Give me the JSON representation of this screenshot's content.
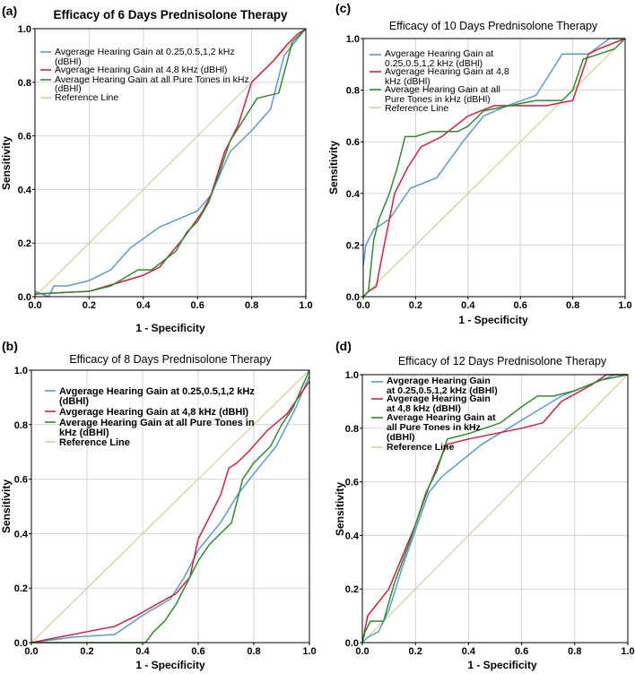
{
  "figure": {
    "colors": {
      "low": "#5b9bd5",
      "high": "#d0213d",
      "all": "#2e8b2e",
      "ref": "#d8d0a0",
      "grid": "#d6d6d6",
      "axis": "#000000"
    }
  },
  "chart_data": [
    {
      "id": "a",
      "type": "line",
      "panel_label": "(a)",
      "title": "Efficacy of 6 Days Prednisolone Therapy",
      "xlabel": "1 - Specificity",
      "ylabel": "Sensitivity",
      "xlim": [
        0,
        1
      ],
      "ylim": [
        0,
        1
      ],
      "ticks": [
        "0.0",
        "0.2",
        "0.4",
        "0.6",
        "0.8",
        "1.0"
      ],
      "series": [
        {
          "key": "low",
          "name": "Avgerage Hearing Gain at 0.25,0.5,1,2 kHz (dBHl)",
          "x": [
            0,
            0.05,
            0.07,
            0.12,
            0.2,
            0.28,
            0.35,
            0.46,
            0.6,
            0.65,
            0.72,
            0.8,
            0.87,
            0.92,
            1.0
          ],
          "y": [
            0.02,
            0.0,
            0.04,
            0.04,
            0.06,
            0.1,
            0.18,
            0.26,
            0.32,
            0.38,
            0.54,
            0.62,
            0.7,
            0.9,
            1.0
          ]
        },
        {
          "key": "high",
          "name": "Avgerage Hearing Gain at 4,8 kHz (dBHl)",
          "x": [
            0,
            0.2,
            0.3,
            0.4,
            0.46,
            0.5,
            0.55,
            0.62,
            0.65,
            0.7,
            0.75,
            0.8,
            0.88,
            0.93,
            0.97,
            1.0
          ],
          "y": [
            0.01,
            0.02,
            0.05,
            0.08,
            0.11,
            0.16,
            0.22,
            0.32,
            0.38,
            0.54,
            0.64,
            0.8,
            0.88,
            0.94,
            0.98,
            1.0
          ]
        },
        {
          "key": "all",
          "name": "Average Hearing Gain at all Pure Tones in kHz (dBHl)",
          "x": [
            0,
            0.2,
            0.28,
            0.33,
            0.38,
            0.43,
            0.47,
            0.52,
            0.56,
            0.6,
            0.64,
            0.68,
            0.72,
            0.77,
            0.82,
            0.9,
            0.95,
            1.0
          ],
          "y": [
            0.01,
            0.02,
            0.04,
            0.07,
            0.1,
            0.1,
            0.13,
            0.17,
            0.24,
            0.28,
            0.35,
            0.46,
            0.58,
            0.66,
            0.74,
            0.76,
            0.95,
            1.0
          ]
        },
        {
          "key": "ref",
          "name": "Reference Line",
          "x": [
            0,
            1
          ],
          "y": [
            0,
            1
          ]
        }
      ]
    },
    {
      "id": "c",
      "type": "line",
      "panel_label": "(c)",
      "title": "Efficacy of 10 Days Prednisolone Therapy",
      "xlabel": "1 - Specificity",
      "ylabel": "Sensitivity",
      "xlim": [
        0,
        1
      ],
      "ylim": [
        0,
        1
      ],
      "ticks": [
        "0.0",
        "0.2",
        "0.4",
        "0.6",
        "0.8",
        "1.0"
      ],
      "series": [
        {
          "key": "low",
          "name": "Avgerage Hearing Gain at 0.25,0.5,1,2 kHz (dBHl)",
          "x": [
            0,
            0.01,
            0.04,
            0.1,
            0.18,
            0.28,
            0.38,
            0.46,
            0.55,
            0.66,
            0.76,
            0.86,
            0.94,
            1.0
          ],
          "y": [
            0.12,
            0.2,
            0.26,
            0.3,
            0.42,
            0.46,
            0.6,
            0.7,
            0.74,
            0.78,
            0.94,
            0.94,
            1.0,
            1.0
          ]
        },
        {
          "key": "high",
          "name": "Avgerage Hearing Gain at 4,8 kHz (dBHl)",
          "x": [
            0,
            0.02,
            0.05,
            0.08,
            0.12,
            0.17,
            0.22,
            0.3,
            0.4,
            0.5,
            0.6,
            0.7,
            0.8,
            0.86,
            0.9,
            1.0
          ],
          "y": [
            0.0,
            0.02,
            0.04,
            0.2,
            0.4,
            0.5,
            0.58,
            0.62,
            0.7,
            0.74,
            0.74,
            0.74,
            0.76,
            0.94,
            0.96,
            1.0
          ]
        },
        {
          "key": "all",
          "name": "Average Hearing Gain at all Pure Tones in kHz (dBHl)",
          "x": [
            0,
            0.02,
            0.04,
            0.06,
            0.1,
            0.13,
            0.16,
            0.2,
            0.26,
            0.3,
            0.36,
            0.4,
            0.46,
            0.56,
            0.66,
            0.76,
            0.8,
            0.84,
            0.9,
            0.96,
            1.0
          ],
          "y": [
            0.0,
            0.02,
            0.22,
            0.3,
            0.4,
            0.5,
            0.62,
            0.62,
            0.64,
            0.64,
            0.64,
            0.66,
            0.72,
            0.74,
            0.76,
            0.76,
            0.8,
            0.92,
            0.94,
            0.96,
            1.0
          ]
        },
        {
          "key": "ref",
          "name": "Reference Line",
          "x": [
            0,
            1
          ],
          "y": [
            0,
            1
          ]
        }
      ]
    },
    {
      "id": "b",
      "type": "line",
      "panel_label": "(b)",
      "title": "Efficacy of 8 Days Prednisolone Therapy",
      "xlabel": "1 - Specificity",
      "ylabel": "Sensitivity",
      "xlim": [
        0,
        1
      ],
      "ylim": [
        0,
        1
      ],
      "ticks": [
        "0.0",
        "0.2",
        "0.4",
        "0.6",
        "0.8",
        "1.0"
      ],
      "series": [
        {
          "key": "low",
          "name": "Avgerage Hearing Gain at 0.25,0.5,1,2 kHz (dBHl)",
          "x": [
            0,
            0.15,
            0.3,
            0.4,
            0.5,
            0.55,
            0.6,
            0.68,
            0.74,
            0.8,
            0.88,
            0.95,
            1.0
          ],
          "y": [
            0.0,
            0.02,
            0.03,
            0.1,
            0.16,
            0.24,
            0.34,
            0.44,
            0.54,
            0.62,
            0.72,
            0.86,
            0.98
          ]
        },
        {
          "key": "high",
          "name": "Avgerage Hearing Gain at 4,8 kHz (dBHl)",
          "x": [
            0,
            0.1,
            0.2,
            0.3,
            0.38,
            0.45,
            0.52,
            0.57,
            0.6,
            0.64,
            0.68,
            0.71,
            0.74,
            0.78,
            0.85,
            0.92,
            1.0
          ],
          "y": [
            0.0,
            0.02,
            0.04,
            0.06,
            0.1,
            0.14,
            0.18,
            0.24,
            0.38,
            0.46,
            0.54,
            0.64,
            0.66,
            0.7,
            0.78,
            0.84,
            0.96
          ]
        },
        {
          "key": "all",
          "name": "Average Hearing Gain at all Pure Tones in kHz (dBHl)",
          "x": [
            0,
            0.41,
            0.44,
            0.48,
            0.52,
            0.56,
            0.6,
            0.64,
            0.68,
            0.72,
            0.76,
            0.8,
            0.86,
            0.9,
            0.94,
            1.0
          ],
          "y": [
            0.0,
            0.0,
            0.04,
            0.08,
            0.14,
            0.22,
            0.3,
            0.36,
            0.4,
            0.44,
            0.6,
            0.66,
            0.72,
            0.8,
            0.86,
            1.0
          ]
        },
        {
          "key": "ref",
          "name": "Reference Line",
          "x": [
            0,
            1
          ],
          "y": [
            0,
            1
          ]
        }
      ]
    },
    {
      "id": "d",
      "type": "line",
      "panel_label": "(d)",
      "title": "Efficacy of 12 Days Prednisolone Therapy",
      "xlabel": "1 - Specificity",
      "ylabel": "Sensitivity",
      "xlim": [
        0,
        1
      ],
      "ylim": [
        0,
        1
      ],
      "ticks": [
        "0.0",
        "0.2",
        "0.4",
        "0.6",
        "0.8",
        "1.0"
      ],
      "series": [
        {
          "key": "low",
          "name": "Avgerage Hearing Gain at 0.25,0.5,1,2 kHz (dBHl)",
          "x": [
            0,
            0.02,
            0.06,
            0.1,
            0.15,
            0.2,
            0.25,
            0.3,
            0.35,
            0.45,
            0.55,
            0.65,
            0.75,
            0.85,
            0.95,
            1.0
          ],
          "y": [
            0.0,
            0.02,
            0.04,
            0.12,
            0.28,
            0.42,
            0.56,
            0.62,
            0.66,
            0.74,
            0.8,
            0.86,
            0.92,
            0.96,
            1.0,
            1.0
          ]
        },
        {
          "key": "high",
          "name": "Avgerage Hearing Gain at 4,8 kHz (dBHl)",
          "x": [
            0,
            0.02,
            0.1,
            0.15,
            0.2,
            0.25,
            0.3,
            0.32,
            0.4,
            0.5,
            0.6,
            0.68,
            0.75,
            0.86,
            0.92,
            1.0
          ],
          "y": [
            0.0,
            0.1,
            0.2,
            0.32,
            0.44,
            0.58,
            0.7,
            0.74,
            0.76,
            0.78,
            0.8,
            0.82,
            0.9,
            0.96,
            1.0,
            1.0
          ]
        },
        {
          "key": "all",
          "name": "Average Hearing Gain at all Pure Tones in kHz (dBHl)",
          "x": [
            0,
            0.01,
            0.03,
            0.08,
            0.12,
            0.18,
            0.24,
            0.28,
            0.32,
            0.4,
            0.46,
            0.52,
            0.6,
            0.66,
            0.72,
            0.8,
            0.9,
            1.0
          ],
          "y": [
            0.0,
            0.04,
            0.08,
            0.08,
            0.22,
            0.38,
            0.56,
            0.64,
            0.76,
            0.78,
            0.8,
            0.82,
            0.88,
            0.92,
            0.92,
            0.94,
            0.98,
            1.0
          ]
        },
        {
          "key": "ref",
          "name": "Reference Line",
          "x": [
            0,
            1
          ],
          "y": [
            0,
            1
          ]
        }
      ]
    }
  ],
  "legends": {
    "a": [
      "Avgerage Hearing Gain at 0.25,0.5,1,2 kHz",
      "(dBHl)",
      "Avgerage Hearing Gain at 4,8 kHz (dBHl)",
      "Average Hearing Gain at all Pure Tones in kHz",
      "(dBHl)",
      "Reference Line"
    ],
    "c": [
      "Avgerage Hearing Gain at",
      "0.25,0.5,1,2 kHz (dBHl)",
      "Avgerage Hearing Gain at 4,8",
      "kHz (dBHl)",
      "Average Hearing Gain at all",
      "Pure Tones in kHz (dBHl)",
      "Reference Line"
    ],
    "b": [
      "Avgerage Hearing Gain at 0.25,0.5,1,2 kHz",
      "(dBHl)",
      "Avgerage Hearing Gain at 4,8 kHz (dBHl)",
      "Average Hearing Gain at all Pure Tones in",
      "kHz (dBHl)",
      "Reference Line"
    ],
    "d": [
      "Avgerage Hearing Gain",
      "at 0.25,0.5,1,2 kHz (dBHl)",
      "Avgerage Hearing Gain",
      "at 4,8 kHz (dBHl)",
      "Average Hearing Gain at",
      "all Pure Tones in kHz",
      "(dBHl)",
      "Reference Line"
    ]
  }
}
